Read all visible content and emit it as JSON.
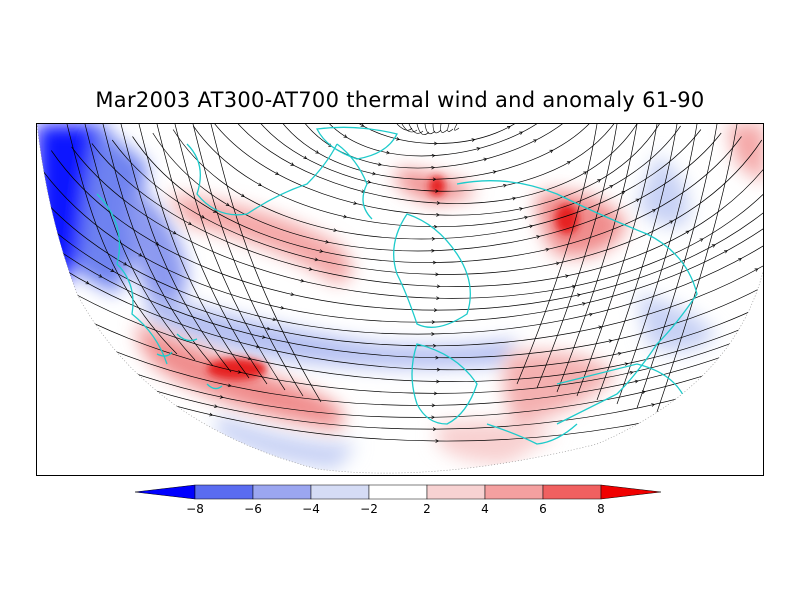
{
  "title": "Mar2003 AT300-AT700 thermal wind and anomaly 61-90",
  "legend": {
    "levels": [
      -8,
      -6,
      -4,
      -2,
      2,
      4,
      6,
      8
    ],
    "labels": [
      "−8",
      "−6",
      "−4",
      "−2",
      "2",
      "4",
      "6",
      "8"
    ],
    "colors": [
      "#0000ff",
      "#5a6cf0",
      "#9ba6f0",
      "#d5dcf5",
      "#ffffff",
      "#f7d2d2",
      "#f4a0a0",
      "#f06060",
      "#f00000"
    ]
  },
  "map": {
    "anomaly_colors": {
      "strong_negative": "#0a14ff",
      "negative": "#6e82f0",
      "weak_negative": "#c8d2f5",
      "weak_positive": "#f8d0d0",
      "positive": "#f08c8c",
      "strong_positive": "#e62020"
    },
    "coastline_color": "#1ecbcb",
    "streamline_color": "#000000"
  }
}
